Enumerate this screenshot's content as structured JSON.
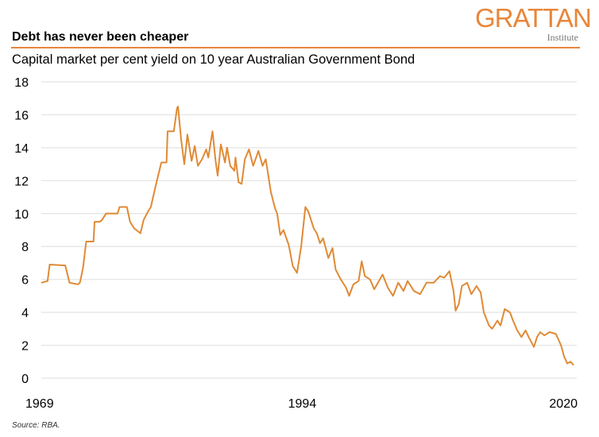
{
  "logo": {
    "main": "GRATTAN",
    "sub": "Institute"
  },
  "title": "Debt has never been cheaper",
  "subtitle": "Capital market per cent yield on 10 year Australian Government Bond",
  "source": "Source: RBA.",
  "colors": {
    "line": "#e08a35",
    "accent": "#e8863a",
    "grid": "#e3e3e3"
  },
  "chart_data": {
    "type": "line",
    "title": "Debt has never been cheaper",
    "subtitle": "Capital market per cent yield on 10 year Australian Government Bond",
    "xlabel": "",
    "ylabel": "",
    "xlim": [
      1969,
      2020
    ],
    "ylim": [
      0,
      18
    ],
    "x_ticks": [
      "1969",
      "1994",
      "2020"
    ],
    "y_ticks": [
      "0",
      "2",
      "4",
      "6",
      "8",
      "10",
      "12",
      "14",
      "16",
      "18"
    ],
    "grid": "horizontal",
    "legend": "none",
    "series": [
      {
        "x": [
          1969.0,
          1969.6,
          1969.8,
          1971.3,
          1971.7,
          1972.5,
          1972.7,
          1973.0,
          1973.3,
          1974.0,
          1974.1,
          1974.6,
          1974.8,
          1975.2,
          1976.3,
          1976.5,
          1977.2,
          1977.5,
          1977.9,
          1978.5,
          1978.8,
          1979.2,
          1979.5,
          1980.0,
          1980.5,
          1981.0,
          1981.1,
          1981.7,
          1982.0,
          1982.1,
          1982.4,
          1982.7,
          1983.0,
          1983.4,
          1983.7,
          1984.0,
          1984.4,
          1984.8,
          1985.0,
          1985.4,
          1985.7,
          1985.9,
          1986.2,
          1986.6,
          1986.8,
          1987.1,
          1987.5,
          1987.6,
          1987.9,
          1988.2,
          1988.5,
          1988.9,
          1989.3,
          1989.8,
          1990.2,
          1990.5,
          1991.0,
          1991.4,
          1991.6,
          1991.9,
          1992.2,
          1992.7,
          1993.1,
          1993.5,
          1993.9,
          1994.3,
          1994.6,
          1995.1,
          1995.4,
          1995.7,
          1996.0,
          1996.5,
          1996.9,
          1997.2,
          1997.7,
          1998.2,
          1998.5,
          1998.9,
          1999.4,
          1999.7,
          2000.0,
          2000.5,
          2000.9,
          2001.7,
          2002.2,
          2002.7,
          2003.2,
          2003.7,
          2004.1,
          2004.7,
          2005.3,
          2005.9,
          2006.6,
          2007.2,
          2007.6,
          2008.1,
          2008.5,
          2008.7,
          2009.0,
          2009.3,
          2009.8,
          2010.2,
          2010.7,
          2011.1,
          2011.4,
          2011.9,
          2012.2,
          2012.7,
          2013.0,
          2013.4,
          2013.9,
          2014.2,
          2014.6,
          2015.0,
          2015.4,
          2015.7,
          2016.2,
          2016.5,
          2016.8,
          2017.2,
          2017.7,
          2018.3,
          2018.8,
          2019.1,
          2019.4,
          2019.7,
          2020.0
        ],
        "y": [
          5.8,
          5.9,
          6.9,
          6.85,
          5.8,
          5.7,
          5.8,
          6.7,
          8.3,
          8.3,
          9.5,
          9.5,
          9.6,
          10.0,
          10.0,
          10.4,
          10.4,
          9.5,
          9.1,
          8.8,
          9.6,
          10.1,
          10.4,
          11.8,
          13.1,
          13.1,
          15.0,
          15.0,
          16.4,
          16.5,
          14.5,
          13.0,
          14.8,
          13.2,
          14.1,
          12.9,
          13.3,
          13.9,
          13.4,
          15.0,
          13.2,
          12.3,
          14.2,
          13.1,
          14.0,
          12.9,
          12.6,
          13.4,
          11.9,
          11.8,
          13.3,
          13.9,
          12.9,
          13.8,
          12.9,
          13.3,
          11.3,
          10.3,
          10.0,
          8.7,
          9.0,
          8.1,
          6.8,
          6.4,
          8.0,
          10.4,
          10.1,
          9.1,
          8.8,
          8.2,
          8.5,
          7.3,
          7.9,
          6.6,
          6.0,
          5.5,
          5.0,
          5.7,
          5.9,
          7.1,
          6.2,
          6.0,
          5.4,
          6.3,
          5.5,
          5.0,
          5.8,
          5.3,
          5.9,
          5.3,
          5.1,
          5.8,
          5.8,
          6.2,
          6.1,
          6.5,
          5.3,
          4.1,
          4.5,
          5.6,
          5.8,
          5.1,
          5.6,
          5.2,
          4.0,
          3.2,
          3.0,
          3.5,
          3.2,
          4.2,
          4.0,
          3.5,
          2.9,
          2.5,
          2.9,
          2.5,
          1.9,
          2.5,
          2.8,
          2.6,
          2.8,
          2.7,
          2.0,
          1.3,
          0.9,
          1.0,
          0.8
        ]
      }
    ]
  }
}
